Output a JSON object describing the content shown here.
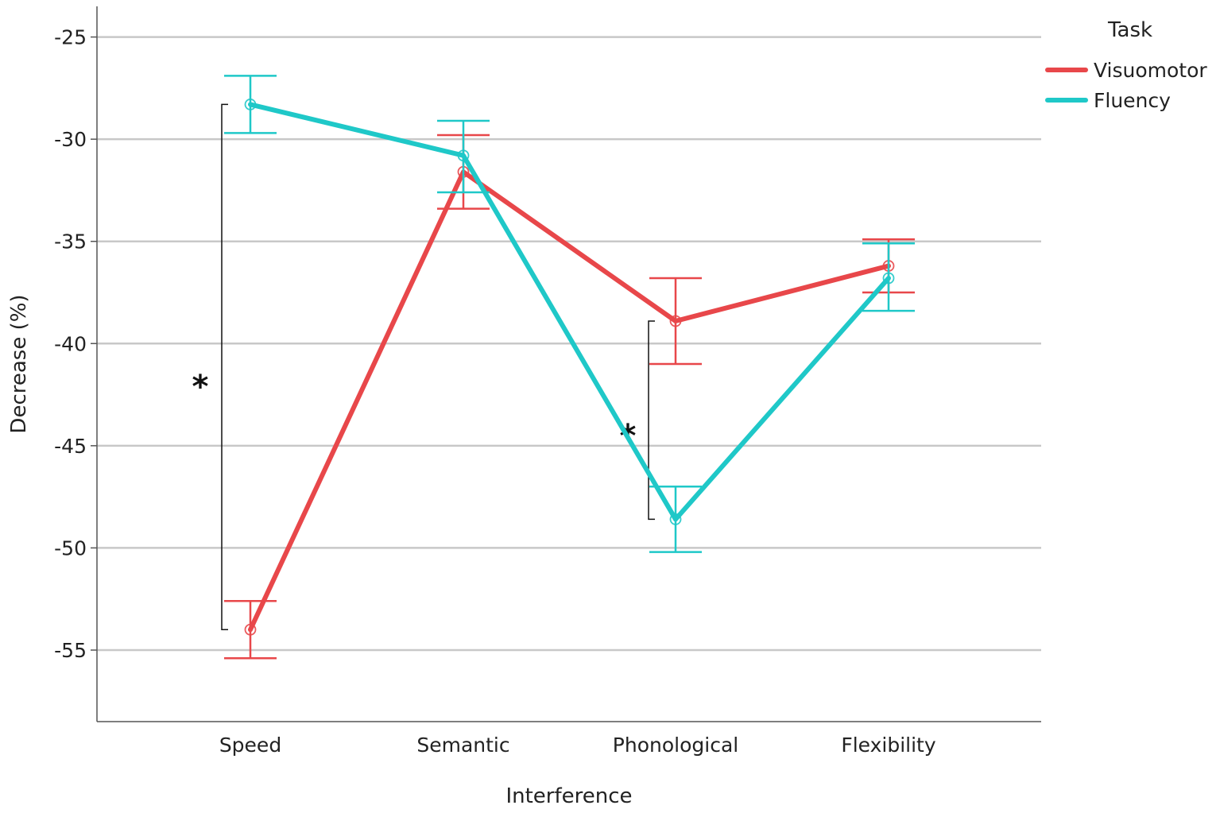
{
  "chart_data": {
    "type": "line",
    "xlabel": "Interference",
    "ylabel": "Decrease (%)",
    "categories": [
      "Speed",
      "Semantic",
      "Phonological",
      "Flexibility"
    ],
    "ylim": [
      -58.5,
      -23.5
    ],
    "yticks": [
      -25,
      -30,
      -35,
      -40,
      -45,
      -50,
      -55
    ],
    "ytick_labels": [
      "-25",
      "-30",
      "-35",
      "-40",
      "-45",
      "-50",
      "-55"
    ],
    "grid": true,
    "legend": {
      "title": "Task",
      "position": "top-right"
    },
    "series": [
      {
        "name": "Visuomotor",
        "color": "#e8474a",
        "values": [
          -54.0,
          -31.6,
          -38.9,
          -36.2
        ],
        "err_low": [
          -55.4,
          -33.4,
          -41.0,
          -37.5
        ],
        "err_high": [
          -52.6,
          -29.8,
          -36.8,
          -34.9
        ]
      },
      {
        "name": "Fluency",
        "color": "#1fc8c8",
        "values": [
          -28.3,
          -30.8,
          -48.6,
          -36.8
        ],
        "err_low": [
          -29.7,
          -32.6,
          -50.2,
          -38.4
        ],
        "err_high": [
          -26.9,
          -29.1,
          -47.0,
          -35.1
        ]
      }
    ],
    "annotations": [
      {
        "text": "*",
        "category": "Speed",
        "y_top": -28.3,
        "y_bottom": -54.0
      },
      {
        "text": "*",
        "category": "Phonological",
        "y_top": -38.9,
        "y_bottom": -48.6
      }
    ]
  }
}
